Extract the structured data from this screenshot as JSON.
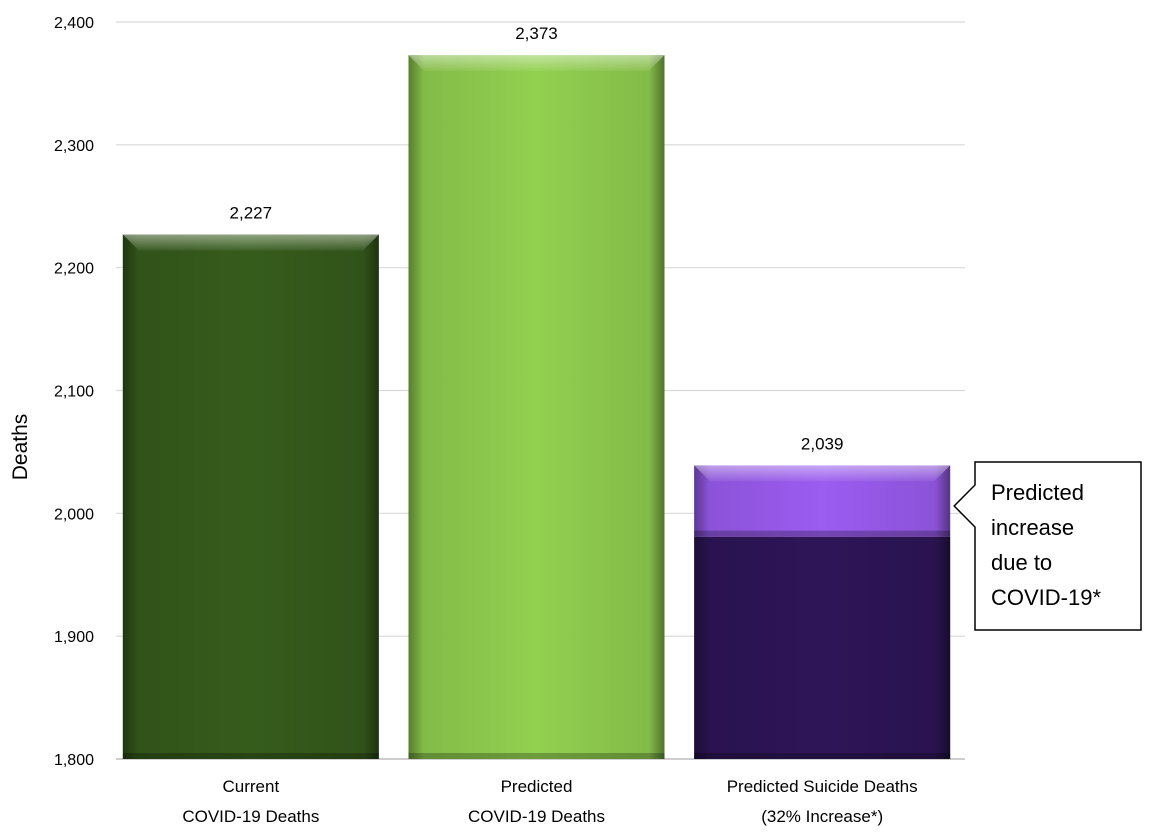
{
  "chart_data": {
    "type": "bar",
    "title": "",
    "xlabel": "",
    "ylabel": "Deaths",
    "ylim": [
      1800,
      2400
    ],
    "yticks": [
      1800,
      1900,
      2000,
      2100,
      2200,
      2300,
      2400
    ],
    "ytick_labels": [
      "1,800",
      "1,900",
      "2,000",
      "2,100",
      "2,200",
      "2,300",
      "2,400"
    ],
    "grid": true,
    "categories": [
      [
        "Current",
        "COVID-19 Deaths"
      ],
      [
        "Predicted",
        "COVID-19 Deaths"
      ],
      [
        "Predicted Suicide Deaths",
        "(32% Increase*)"
      ]
    ],
    "values": [
      2227,
      2373,
      2039
    ],
    "value_labels": [
      "2,227",
      "2,373",
      "2,039"
    ],
    "stack_split": {
      "index": 2,
      "base_value": 1981,
      "increase_color": "#9b5cf0"
    },
    "colors": [
      "#365c1c",
      "#92d050",
      "#2e1558"
    ],
    "annotation": {
      "target_index": 2,
      "lines": [
        "Predicted",
        "increase",
        "due to",
        "COVID-19*"
      ]
    }
  }
}
